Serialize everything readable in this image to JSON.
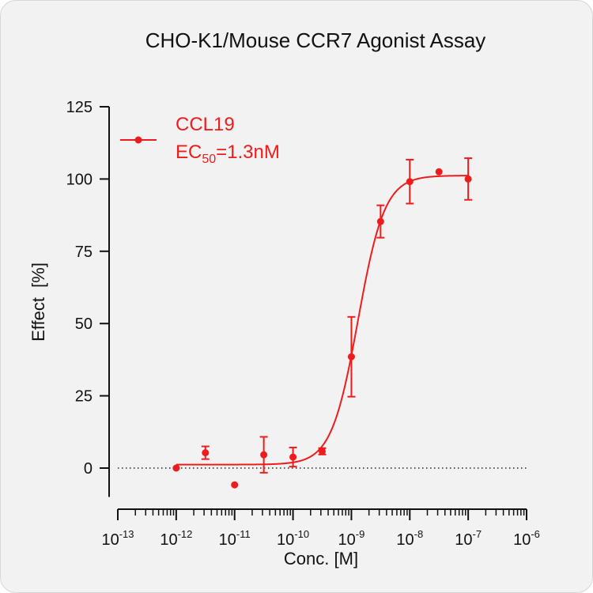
{
  "chart_data": {
    "type": "scatter",
    "title": "CHO-K1/Mouse CCR7 Agonist Assay",
    "xlabel": "Conc. [M]",
    "ylabel": "Effect  [%]",
    "x_scale": "log",
    "xlim": [
      1e-13,
      1e-06
    ],
    "ylim": [
      -10,
      125
    ],
    "x_ticks": [
      {
        "base": "10",
        "exp": "-13"
      },
      {
        "base": "10",
        "exp": "-12"
      },
      {
        "base": "10",
        "exp": "-11"
      },
      {
        "base": "10",
        "exp": "-10"
      },
      {
        "base": "10",
        "exp": "-9"
      },
      {
        "base": "10",
        "exp": "-8"
      },
      {
        "base": "10",
        "exp": "-7"
      },
      {
        "base": "10",
        "exp": "-6"
      }
    ],
    "y_ticks": [
      "0",
      "25",
      "50",
      "75",
      "100",
      "125"
    ],
    "y_tick_values": [
      0,
      25,
      50,
      75,
      100,
      125
    ],
    "reference_line": {
      "y": 0,
      "style": "dotted"
    },
    "legend_position": "top-left",
    "series": [
      {
        "name": "CCL19",
        "ec50_label": {
          "prefix": "EC",
          "sub": "50",
          "suffix": "=1.3nM"
        },
        "color": "#ee1c1c",
        "points": [
          {
            "x": 1e-12,
            "y": 0,
            "err": 0
          },
          {
            "x": 3.16e-12,
            "y": 5.3,
            "err": 2.2
          },
          {
            "x": 1e-11,
            "y": -5.8,
            "err": 0
          },
          {
            "x": 3.16e-11,
            "y": 4.6,
            "err": 6.2
          },
          {
            "x": 1e-10,
            "y": 3.8,
            "err": 3.3
          },
          {
            "x": 3.16e-10,
            "y": 5.8,
            "err": 1.1
          },
          {
            "x": 1e-09,
            "y": 38.5,
            "err": 13.8
          },
          {
            "x": 3.16e-09,
            "y": 85.3,
            "err": 5.6
          },
          {
            "x": 1e-08,
            "y": 99.1,
            "err": 7.6
          },
          {
            "x": 3.16e-08,
            "y": 102.5,
            "err": 0
          },
          {
            "x": 1e-07,
            "y": 100.0,
            "err": 7.2
          }
        ],
        "fit": {
          "model": "4PL",
          "bottom": 1.2,
          "top": 101.2,
          "ec50": 1.3e-09,
          "hill": 1.9
        }
      }
    ]
  }
}
